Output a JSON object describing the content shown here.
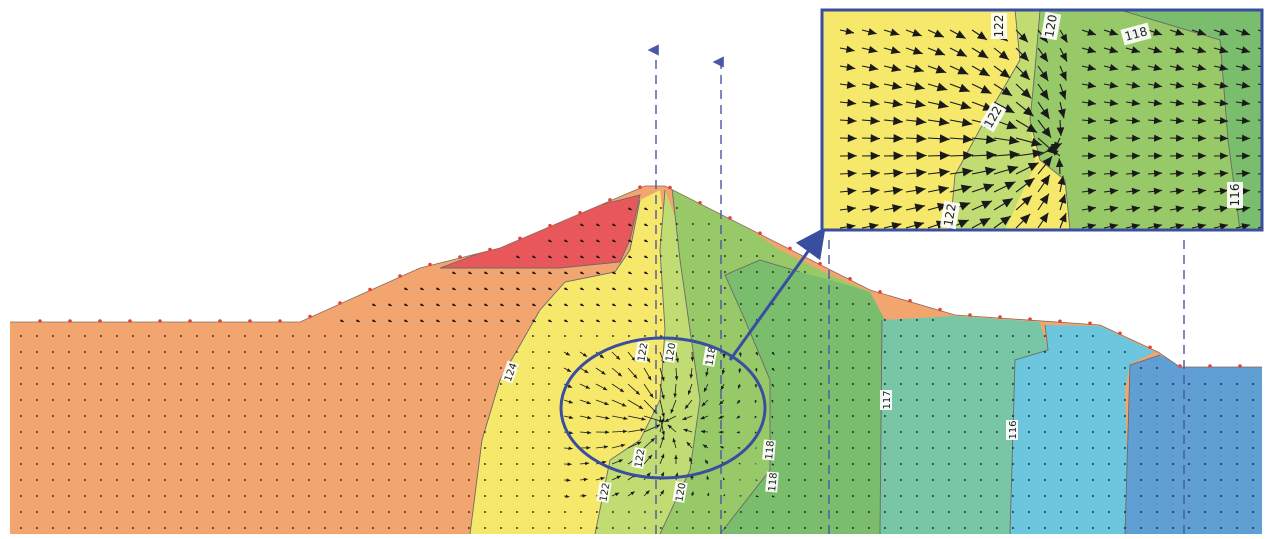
{
  "diagram": {
    "contour_labels_main": [
      "124",
      "122",
      "122",
      "120",
      "118",
      "122",
      "120",
      "118",
      "118",
      "117",
      "116"
    ],
    "inset_labels": [
      "122",
      "120",
      "118",
      "122",
      "122",
      "116"
    ]
  },
  "colors": {
    "zone_red": "#e8585a",
    "zone_orange": "#f3a56f",
    "zone_yellow": "#f6e86a",
    "zone_lightgreen": "#c2dc74",
    "zone_green": "#98c969",
    "zone_midgreen": "#79bd6d",
    "zone_teal": "#79c6a6",
    "zone_cyan": "#6cc6dd",
    "zone_blue": "#5f9fd3",
    "inset_border": "#3a4ea0",
    "ellipse": "#3a4ea0",
    "node": "#e0443a",
    "section_line": "#4a56a8"
  },
  "icons": {
    "arrow": "connector-arrow",
    "flow": "flow-vector"
  }
}
